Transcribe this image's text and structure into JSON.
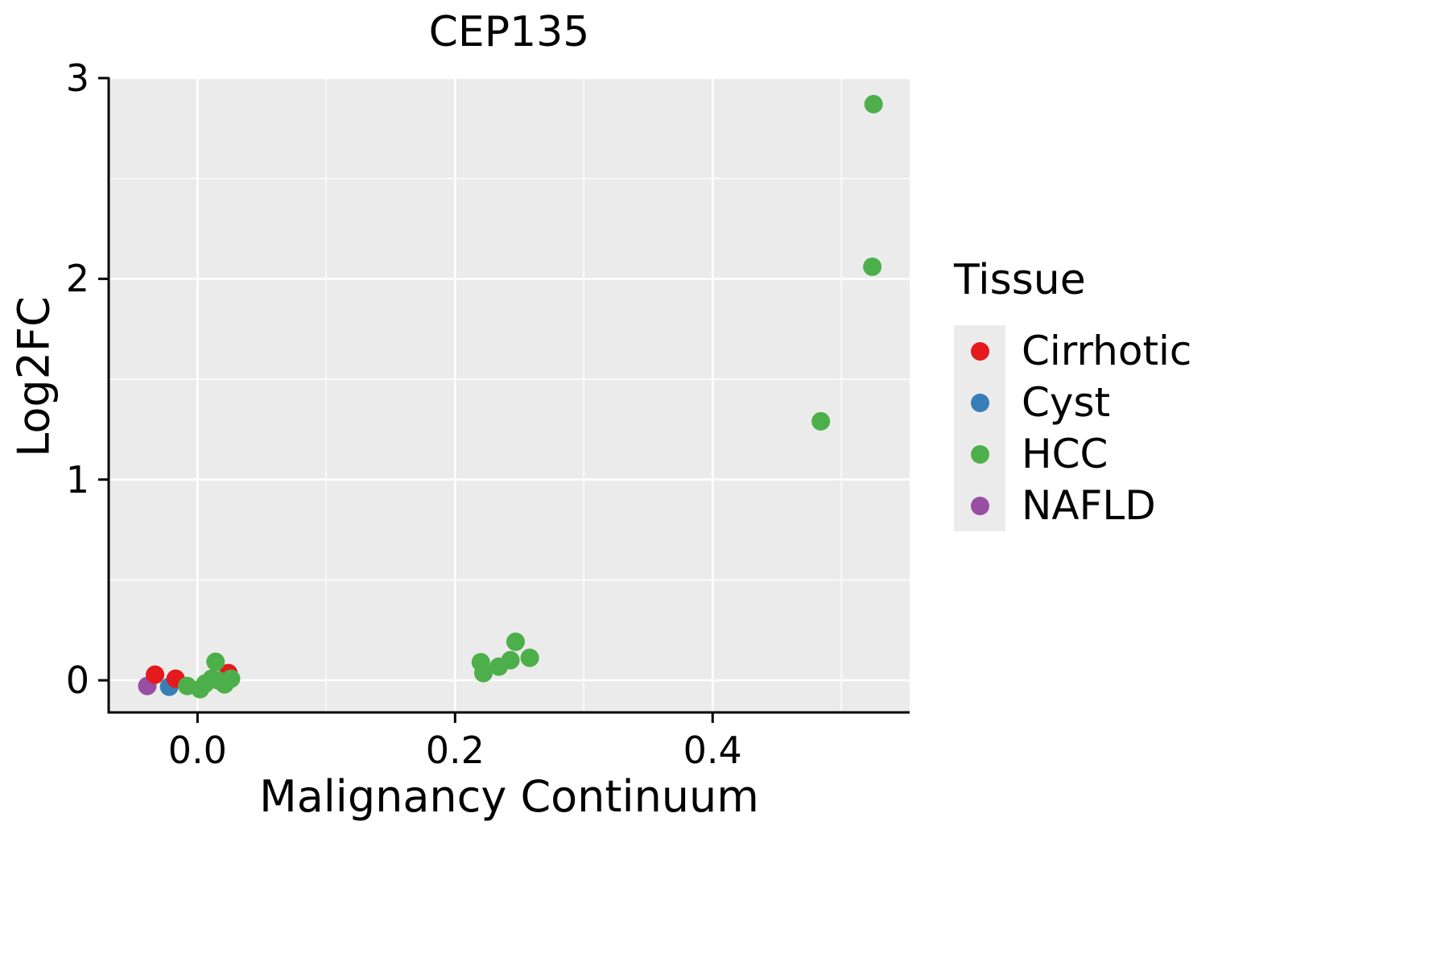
{
  "chart": {
    "title": "CEP135",
    "xlabel": "Malignancy Continuum",
    "ylabel": "Log2FC",
    "legend_title": "Tissue"
  },
  "chart_data": {
    "type": "scatter",
    "title": "CEP135",
    "xlabel": "Malignancy Continuum",
    "ylabel": "Log2FC",
    "legend_title": "Tissue",
    "legend_position": "right",
    "grid": true,
    "panel_color": "#ebebeb",
    "grid_color": "#ffffff",
    "axis_color": "#000000",
    "point_radius": 11.5,
    "xlim": [
      -0.069,
      0.553
    ],
    "ylim": [
      -0.16,
      3.0
    ],
    "x_ticks": [
      0.0,
      0.2,
      0.4
    ],
    "x_tick_labels": [
      "0.0",
      "0.2",
      "0.4"
    ],
    "x_minor_ticks": [
      0.1,
      0.3,
      0.5
    ],
    "y_ticks": [
      0,
      1,
      2,
      3
    ],
    "y_tick_labels": [
      "0",
      "1",
      "2",
      "3"
    ],
    "y_minor_ticks": [
      0.5,
      1.5,
      2.5
    ],
    "z_order": [
      3,
      1,
      0,
      2
    ],
    "series": [
      {
        "name": "Cirrhotic",
        "color": "#e41a1c",
        "points": [
          [
            -0.033,
            0.028
          ],
          [
            -0.017,
            0.008
          ],
          [
            0.024,
            0.036
          ]
        ]
      },
      {
        "name": "Cyst",
        "color": "#377eb8",
        "points": [
          [
            -0.022,
            -0.032
          ]
        ]
      },
      {
        "name": "HCC",
        "color": "#4daf4a",
        "points": [
          [
            -0.008,
            -0.028
          ],
          [
            0.002,
            -0.044
          ],
          [
            0.006,
            -0.016
          ],
          [
            0.011,
            0.008
          ],
          [
            0.014,
            0.092
          ],
          [
            0.016,
            0.0
          ],
          [
            0.021,
            -0.02
          ],
          [
            0.026,
            0.008
          ],
          [
            0.22,
            0.09
          ],
          [
            0.222,
            0.036
          ],
          [
            0.234,
            0.068
          ],
          [
            0.243,
            0.1
          ],
          [
            0.247,
            0.192
          ],
          [
            0.258,
            0.112
          ],
          [
            0.484,
            1.29
          ],
          [
            0.524,
            2.06
          ],
          [
            0.525,
            2.87
          ]
        ]
      },
      {
        "name": "NAFLD",
        "color": "#984ea3",
        "points": [
          [
            -0.039,
            -0.028
          ]
        ]
      }
    ]
  }
}
